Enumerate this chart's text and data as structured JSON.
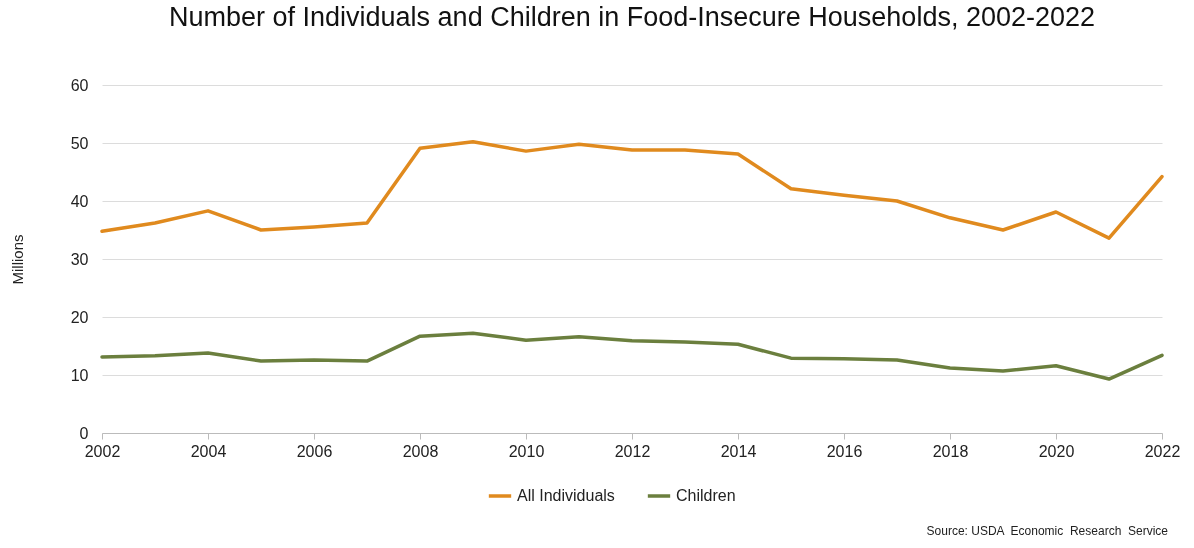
{
  "chart_data": {
    "type": "line",
    "title": "Number of Individuals and Children in Food-Insecure Households, 2002-2022",
    "ylabel": "Millions",
    "x": [
      2002,
      2003,
      2004,
      2005,
      2006,
      2007,
      2008,
      2009,
      2010,
      2011,
      2012,
      2013,
      2014,
      2015,
      2016,
      2017,
      2018,
      2019,
      2020,
      2021,
      2022
    ],
    "series": [
      {
        "name": "All Individuals",
        "color": "#e08a1e",
        "values": [
          34.8,
          36.2,
          38.3,
          35.0,
          35.5,
          36.2,
          49.1,
          50.2,
          48.6,
          49.8,
          48.8,
          48.8,
          48.1,
          42.1,
          41.0,
          40.0,
          37.1,
          35.0,
          38.1,
          33.6,
          44.2
        ]
      },
      {
        "name": "Children",
        "color": "#6b7f3e",
        "values": [
          13.1,
          13.3,
          13.8,
          12.4,
          12.6,
          12.4,
          16.7,
          17.2,
          16.0,
          16.6,
          15.9,
          15.7,
          15.3,
          12.9,
          12.8,
          12.6,
          11.2,
          10.7,
          11.6,
          9.3,
          13.4
        ]
      }
    ],
    "xlim": [
      2002,
      2022
    ],
    "xticks": [
      2002,
      2004,
      2006,
      2008,
      2010,
      2012,
      2014,
      2016,
      2018,
      2020,
      2022
    ],
    "ylim": [
      0,
      60
    ],
    "yticks": [
      0,
      10,
      20,
      30,
      40,
      50,
      60
    ],
    "grid": "y",
    "legend": "bottom",
    "annotations": [
      "Source: USDA  Economic  Research  Service"
    ]
  }
}
